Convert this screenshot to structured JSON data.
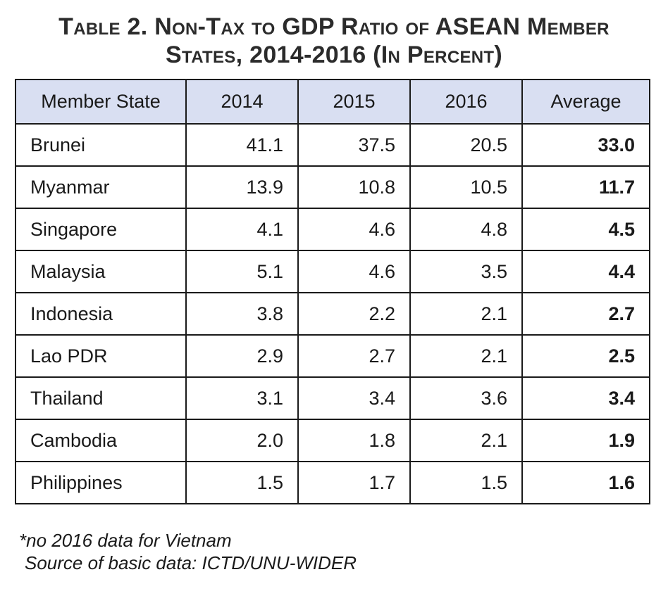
{
  "title": {
    "line1": "Table 2. Non-Tax to GDP Ratio of ASEAN Member",
    "line2": "States, 2014-2016 (In Percent)"
  },
  "notes": {
    "footnote": "*no 2016 data for Vietnam",
    "source": "Source of basic data: ICTD/UNU-WIDER"
  },
  "chart_data": {
    "type": "table",
    "title": "Table 2. Non-Tax to GDP Ratio of ASEAN Member States, 2014-2016 (In Percent)",
    "columns": [
      "Member State",
      "2014",
      "2015",
      "2016",
      "Average"
    ],
    "rows": [
      [
        "Brunei",
        "41.1",
        "37.5",
        "20.5",
        "33.0"
      ],
      [
        "Myanmar",
        "13.9",
        "10.8",
        "10.5",
        "11.7"
      ],
      [
        "Singapore",
        "4.1",
        "4.6",
        "4.8",
        "4.5"
      ],
      [
        "Malaysia",
        "5.1",
        "4.6",
        "3.5",
        "4.4"
      ],
      [
        "Indonesia",
        "3.8",
        "2.2",
        "2.1",
        "2.7"
      ],
      [
        "Lao PDR",
        "2.9",
        "2.7",
        "2.1",
        "2.5"
      ],
      [
        "Thailand",
        "3.1",
        "3.4",
        "3.6",
        "3.4"
      ],
      [
        "Cambodia",
        "2.0",
        "1.8",
        "2.1",
        "1.9"
      ],
      [
        "Philippines",
        "1.5",
        "1.7",
        "1.5",
        "1.6"
      ]
    ],
    "header_color": "#d9dff2"
  }
}
